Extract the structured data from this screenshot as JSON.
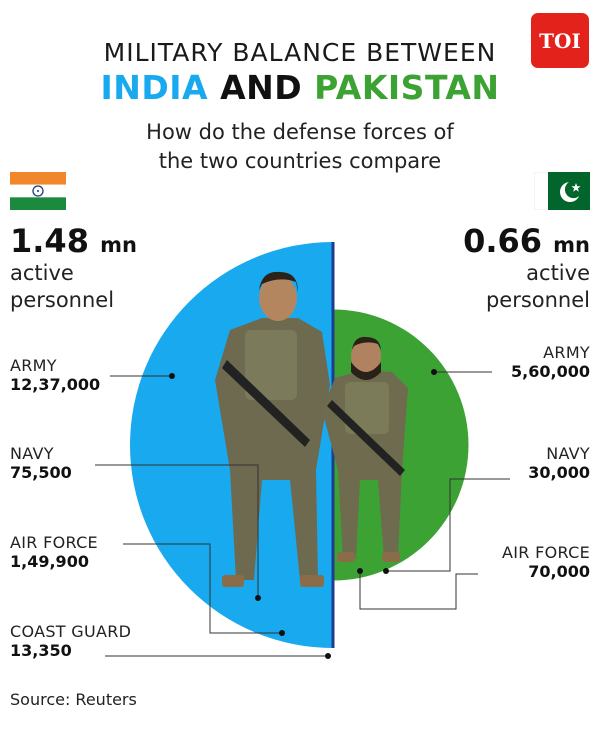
{
  "header": {
    "title_line1": "MILITARY BALANCE BETWEEN",
    "title_india": "INDIA",
    "title_and": "AND",
    "title_pakistan": "PAKISTAN",
    "subtitle_line1": "How do the defense forces of",
    "subtitle_line2": "the two countries compare",
    "logo_text": "TOI"
  },
  "colors": {
    "india_accent": "#19a9ee",
    "pakistan_accent": "#3da234",
    "logo_bg": "#e3221c"
  },
  "india": {
    "total_value": "1.48",
    "total_unit": "mn",
    "total_label_line1": "active",
    "total_label_line2": "personnel",
    "items": [
      {
        "name": "ARMY",
        "value": "12,37,000"
      },
      {
        "name": "NAVY",
        "value": "75,500"
      },
      {
        "name": "AIR FORCE",
        "value": "1,49,900"
      },
      {
        "name": "COAST GUARD",
        "value": "13,350"
      }
    ]
  },
  "pakistan": {
    "total_value": "0.66",
    "total_unit": "mn",
    "total_label_line1": "active",
    "total_label_line2": "personnel",
    "items": [
      {
        "name": "ARMY",
        "value": "5,60,000"
      },
      {
        "name": "NAVY",
        "value": "30,000"
      },
      {
        "name": "AIR FORCE",
        "value": "70,000"
      }
    ]
  },
  "chart_data": {
    "type": "pie",
    "title": "MILITARY BALANCE BETWEEN INDIA AND PAKISTAN",
    "subtitle": "How do the defense forces of the two countries compare",
    "series": [
      {
        "name": "INDIA",
        "total": 1480000,
        "categories": [
          "ARMY",
          "NAVY",
          "AIR FORCE",
          "COAST GUARD"
        ],
        "values": [
          1237000,
          75500,
          149900,
          13350
        ]
      },
      {
        "name": "PAKISTAN",
        "total": 660000,
        "categories": [
          "ARMY",
          "NAVY",
          "AIR FORCE"
        ],
        "values": [
          560000,
          30000,
          70000
        ]
      }
    ]
  },
  "source": "Source: Reuters"
}
